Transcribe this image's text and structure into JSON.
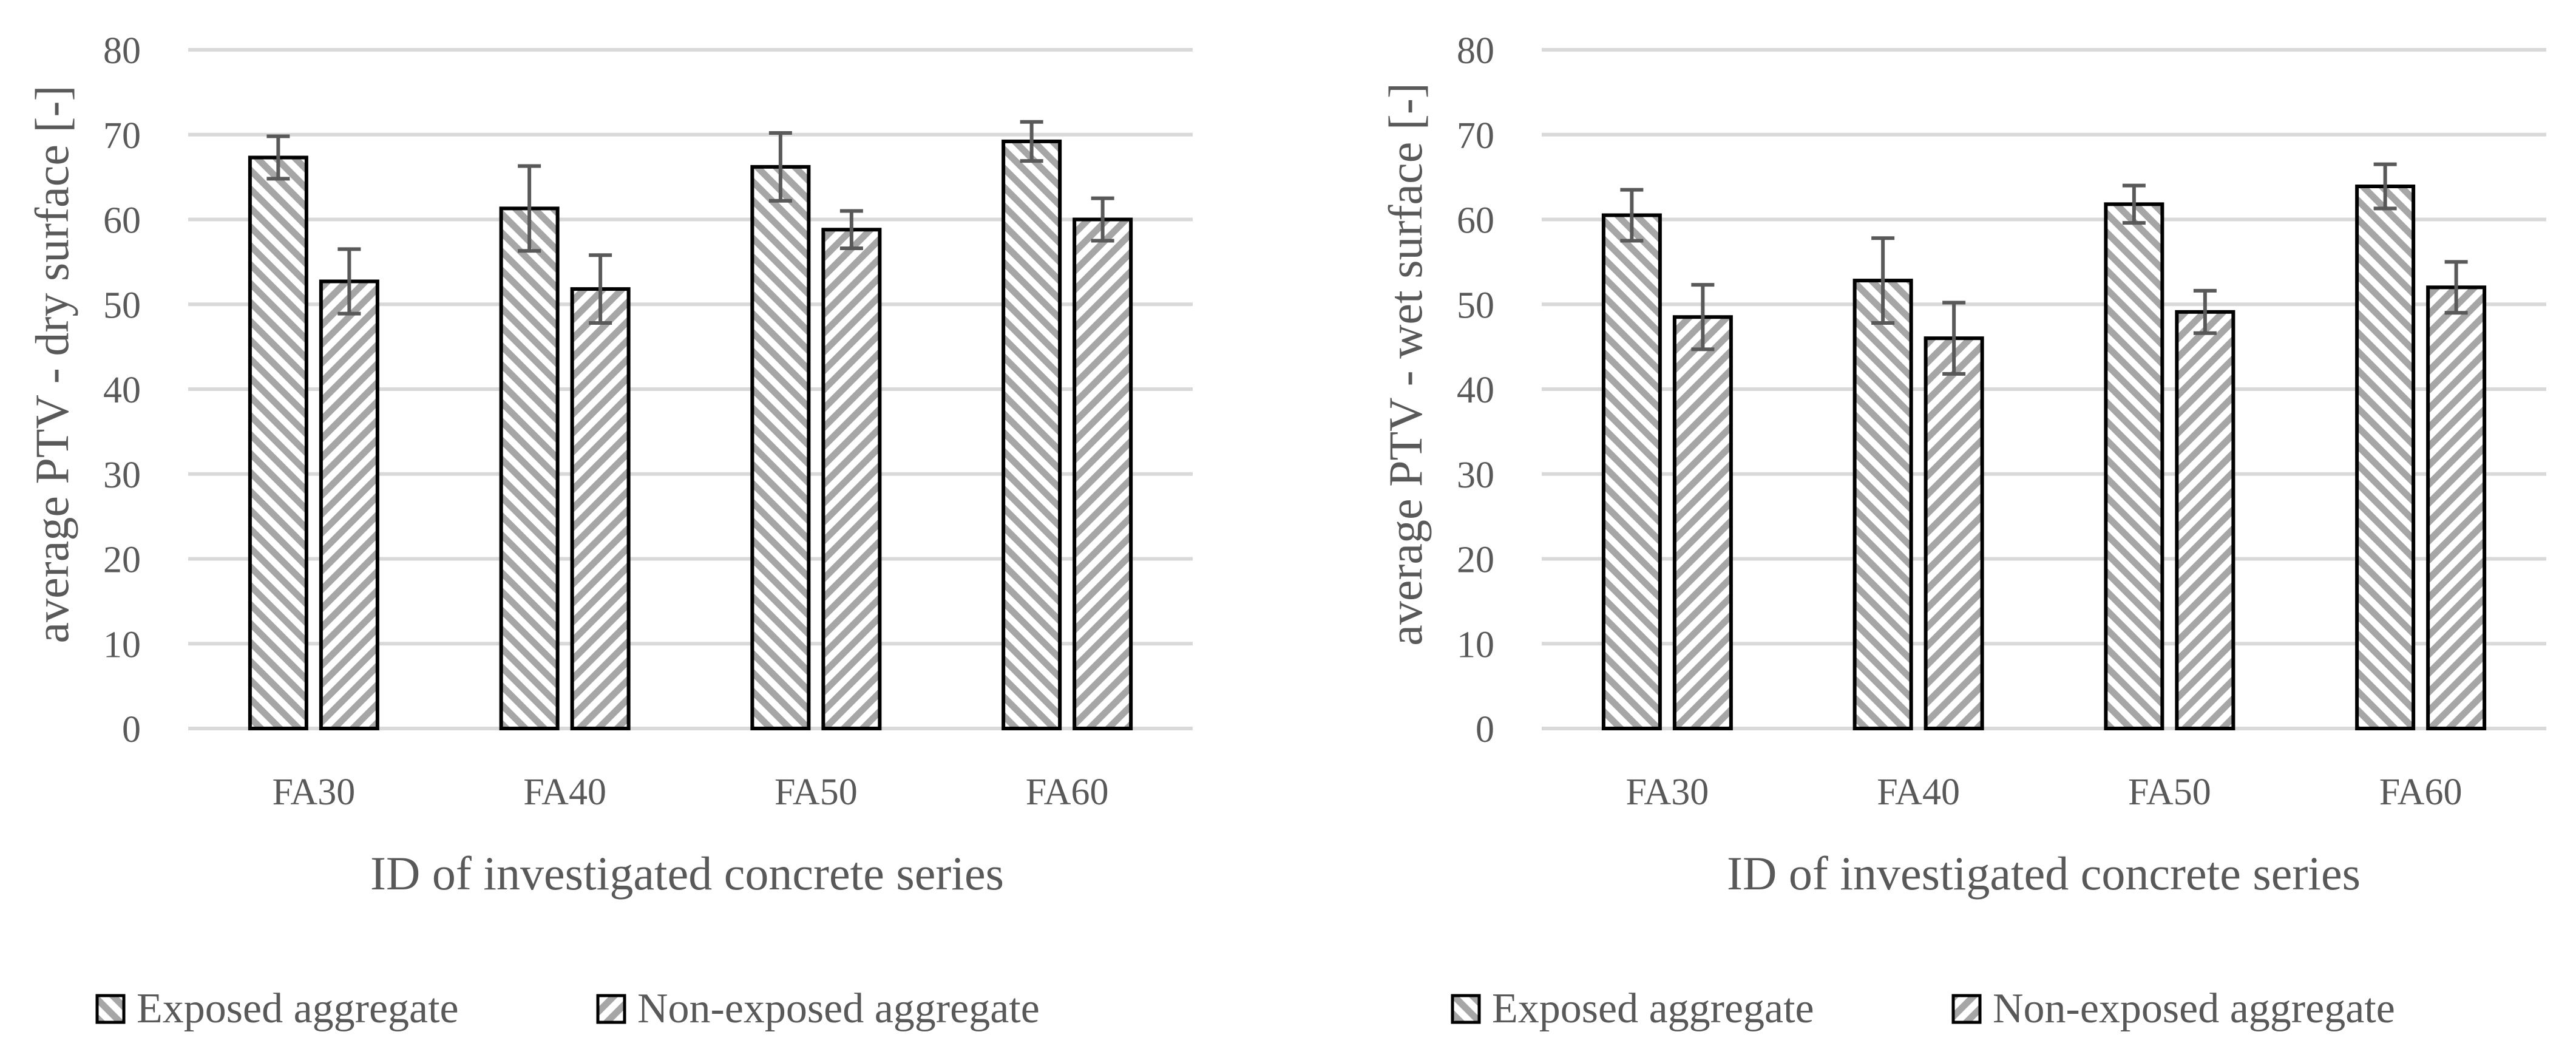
{
  "charts": [
    {
      "id": "dry",
      "chart_data": {
        "type": "bar",
        "categories": [
          "FA30",
          "FA40",
          "FA50",
          "FA60"
        ],
        "series": [
          {
            "name": "Exposed aggregate",
            "values": [
              67.3,
              61.3,
              66.2,
              69.2
            ],
            "errors": [
              2.5,
              5.0,
              4.0,
              2.3
            ]
          },
          {
            "name": "Non-exposed aggregate",
            "values": [
              52.7,
              51.8,
              58.8,
              60.0
            ],
            "errors": [
              3.8,
              4.0,
              2.2,
              2.5
            ]
          }
        ],
        "xlabel": "ID of investigated concrete series",
        "ylabel": "average PTV - dry surface [-]",
        "ylim": [
          0,
          80
        ],
        "yticks": [
          0,
          10,
          20,
          30,
          40,
          50,
          60,
          70,
          80
        ],
        "grid": true,
        "legend": "bottom"
      }
    },
    {
      "id": "wet",
      "chart_data": {
        "type": "bar",
        "categories": [
          "FA30",
          "FA40",
          "FA50",
          "FA60"
        ],
        "series": [
          {
            "name": "Exposed aggregate",
            "values": [
              60.5,
              52.8,
              61.8,
              63.9
            ],
            "errors": [
              3.0,
              5.0,
              2.2,
              2.6
            ]
          },
          {
            "name": "Non-exposed aggregate",
            "values": [
              48.5,
              46.0,
              49.1,
              52.0
            ],
            "errors": [
              3.8,
              4.2,
              2.5,
              3.0
            ]
          }
        ],
        "xlabel": "ID of investigated concrete series",
        "ylabel": "average PTV - wet surface [-]",
        "ylim": [
          0,
          80
        ],
        "yticks": [
          0,
          10,
          20,
          30,
          40,
          50,
          60,
          70,
          80
        ],
        "grid": true,
        "legend": "bottom"
      }
    }
  ],
  "colors": {
    "grid": "#d9d9d9",
    "bar_outline": "#000000",
    "hatch": "#a6a6a6",
    "error_bar": "#595959",
    "text": "#595959"
  }
}
